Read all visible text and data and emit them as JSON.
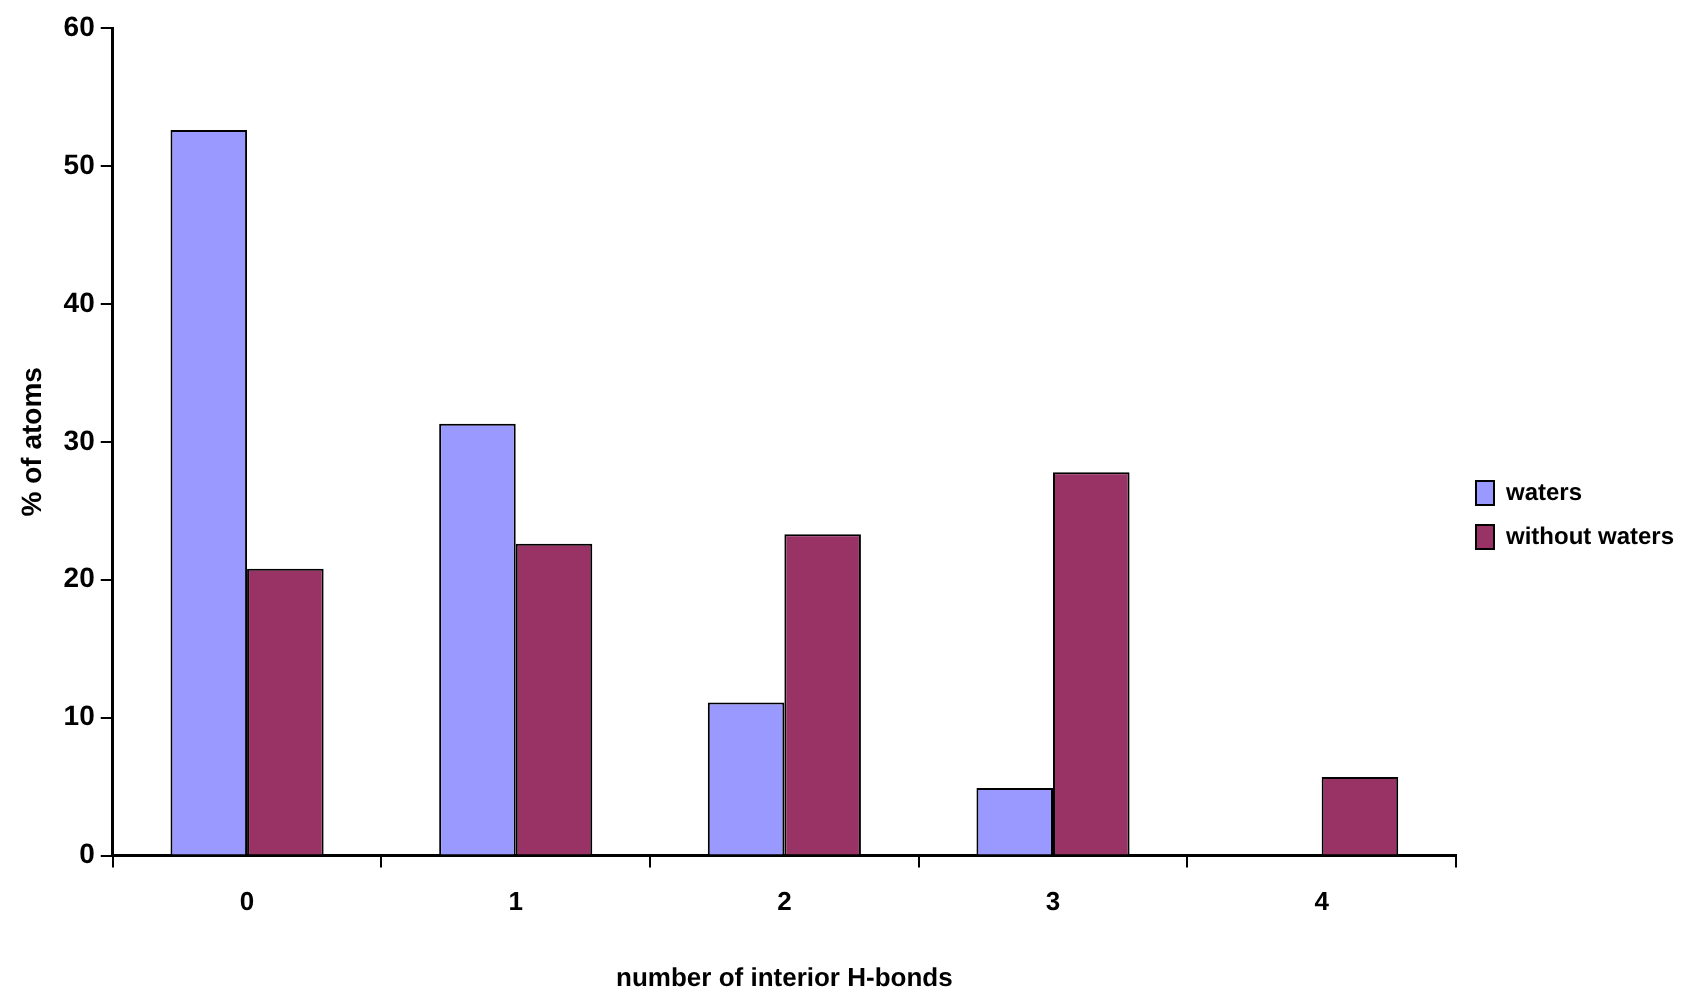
{
  "chart_data": {
    "type": "bar",
    "xlabel": "number of interior H-bonds",
    "ylabel": "% of atoms",
    "categories": [
      "0",
      "1",
      "2",
      "3",
      "4"
    ],
    "series": [
      {
        "name": "waters",
        "color": "#9999ff",
        "values": [
          52.6,
          31.3,
          11.1,
          4.9,
          0
        ]
      },
      {
        "name": "without waters",
        "color": "#993366",
        "values": [
          20.8,
          22.6,
          23.3,
          27.8,
          5.7
        ]
      }
    ],
    "ylim": [
      0,
      60
    ],
    "yticks": [
      0,
      10,
      20,
      30,
      40,
      50,
      60
    ],
    "grid": false,
    "legend": "right"
  }
}
